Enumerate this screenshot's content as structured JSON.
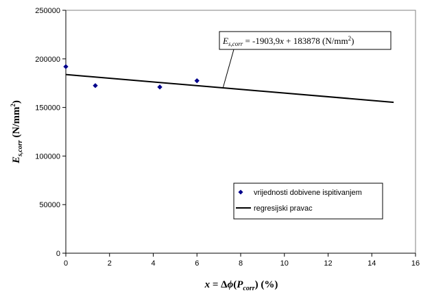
{
  "chart_data": {
    "type": "scatter",
    "xlim": [
      0,
      16
    ],
    "ylim": [
      0,
      250000
    ],
    "x_ticks": [
      0,
      2,
      4,
      6,
      8,
      10,
      12,
      14,
      16
    ],
    "y_ticks": [
      0,
      50000,
      100000,
      150000,
      200000,
      250000
    ],
    "grid": false,
    "legend_position": "bottom-right",
    "xlabel": {
      "lhs": "x",
      "eq": " = Δ",
      "phi": "ϕ",
      "open": "(",
      "P": "P",
      "sub": "corr",
      "close": ")",
      "unit": "  (%)"
    },
    "ylabel": {
      "E": "E",
      "sub": "s,corr",
      "unit": "  (N/mm",
      "sup": "2",
      "close": ")"
    },
    "series": [
      {
        "name": "vrijednosti dobivene ispitivanjem",
        "kind": "points",
        "color": "#00008B",
        "points": [
          {
            "x": 0,
            "y": 192000
          },
          {
            "x": 1.35,
            "y": 172500
          },
          {
            "x": 4.3,
            "y": 171000
          },
          {
            "x": 6.0,
            "y": 177500
          }
        ]
      },
      {
        "name": "regresijski pravac",
        "kind": "line",
        "color": "#000000",
        "slope": -1903.9,
        "intercept": 183878,
        "x_range": [
          0,
          15
        ]
      }
    ],
    "annotation": {
      "E": "E",
      "sub": "s,corr",
      "mid": " = -1903,9",
      "x": "x",
      "rest": " + 183878  (N/mm",
      "sup": "2",
      "close": ")",
      "target_x": 7.2
    }
  }
}
